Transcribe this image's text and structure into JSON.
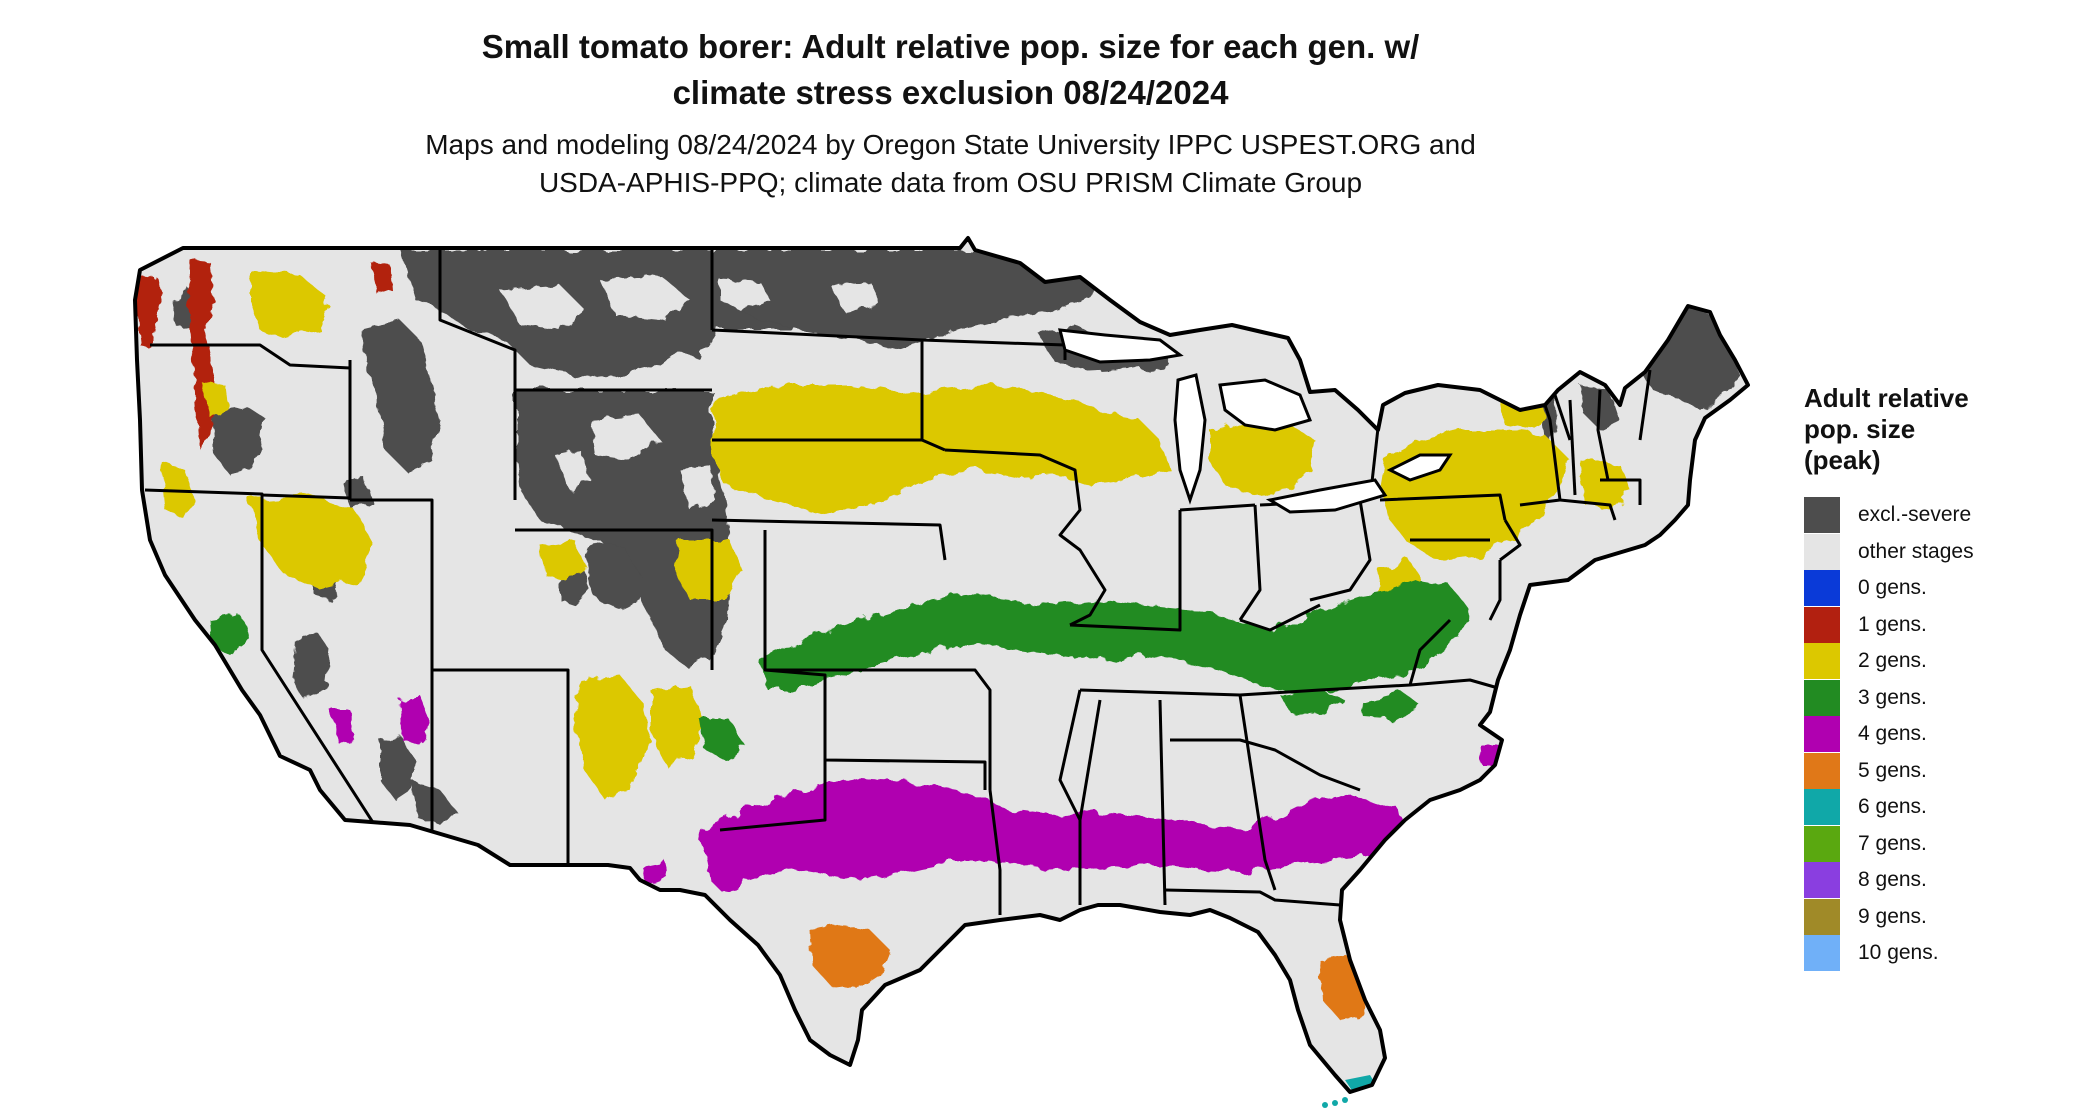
{
  "title": {
    "line1": "Small tomato borer: Adult relative pop. size for each gen. w/",
    "line2": "climate stress exclusion 08/24/2024"
  },
  "subtitle": {
    "line1": "Maps and modeling 08/24/2024 by Oregon State University IPPC USPEST.ORG and",
    "line2": "USDA-APHIS-PPQ; climate data from OSU PRISM Climate Group"
  },
  "legend": {
    "title_lines": [
      "Adult relative",
      "pop. size",
      "(peak)"
    ],
    "items": [
      {
        "label": "excl.-severe",
        "color": "#4d4d4d"
      },
      {
        "label": "other stages",
        "color": "#e5e5e5"
      },
      {
        "label": "0 gens.",
        "color": "#0a3ad8"
      },
      {
        "label": "1 gens.",
        "color": "#b22010"
      },
      {
        "label": "2 gens.",
        "color": "#dcc800"
      },
      {
        "label": "3 gens.",
        "color": "#228b22"
      },
      {
        "label": "4 gens.",
        "color": "#b000b0"
      },
      {
        "label": "5 gens.",
        "color": "#e07818"
      },
      {
        "label": "6 gens.",
        "color": "#10a8a8"
      },
      {
        "label": "7 gens.",
        "color": "#5aa810"
      },
      {
        "label": "8 gens.",
        "color": "#8a3ee0"
      },
      {
        "label": "9 gens.",
        "color": "#a08a28"
      },
      {
        "label": "10 gens.",
        "color": "#70b0f8"
      }
    ]
  },
  "map": {
    "region": "contiguous-united-states",
    "background_color": "#e5e5e5",
    "border_color": "#000000",
    "zones": [
      "excl.-severe",
      "1 gens.",
      "2 gens.",
      "3 gens.",
      "4 gens.",
      "5 gens.",
      "6 gens."
    ]
  }
}
